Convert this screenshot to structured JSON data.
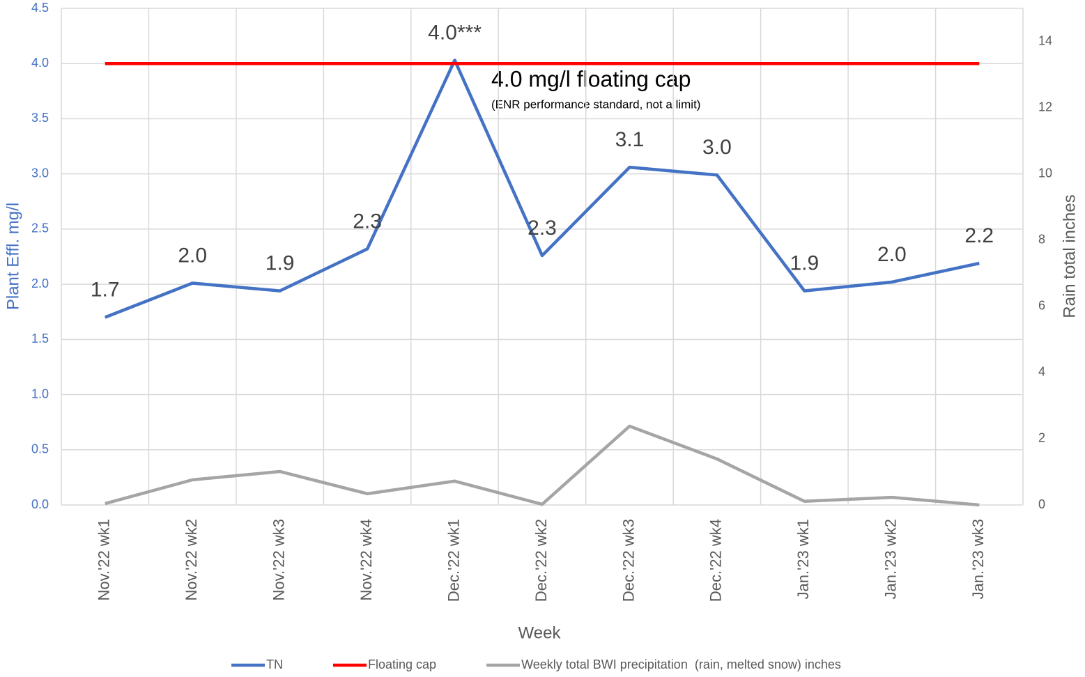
{
  "chart_data": {
    "type": "line",
    "x_label": "Week",
    "y_label": "Plant Effl. mg/l",
    "y2_label": "Rain total inches",
    "annotations": [
      "4.0 mg/l floating cap",
      "(ENR performance standard, not a limit)"
    ],
    "categories": [
      "Nov.'22 wk1",
      "Nov.'22 wk2",
      "Nov.'22 wk3",
      "Nov.'22 wk4",
      "Dec.'22 wk1",
      "Dec.'22 wk2",
      "Dec.'22 wk3",
      "Dec.'22 wk4",
      "Jan.'23 wk1",
      "Jan.'23 wk2",
      "Jan.'23 wk3"
    ],
    "series": [
      {
        "name": "TN",
        "color": "#4472c4",
        "values": [
          1.7,
          2.01,
          1.94,
          2.32,
          4.03,
          2.26,
          3.06,
          2.99,
          1.94,
          2.02,
          2.19
        ],
        "value_labels": [
          "1.7",
          "2.0",
          "1.9",
          "2.3",
          "4.0***",
          "2.3",
          "3.1",
          "3.0",
          "1.9",
          "2.0",
          "2.2"
        ]
      },
      {
        "name": "Floating cap",
        "color": "#ff0000",
        "values": [
          4.0,
          4.0,
          4.0,
          4.0,
          4.0,
          4.0,
          4.0,
          4.0,
          4.0,
          4.0,
          4.0
        ]
      },
      {
        "name": "Weekly total BWI precipitation  (rain, melted snow) inches",
        "color": "#a5a5a5",
        "axis": "y2",
        "values": [
          0.04,
          0.76,
          1.01,
          0.34,
          0.72,
          0.02,
          2.38,
          1.39,
          0.11,
          0.23,
          0
        ]
      }
    ],
    "ylim": [
      0,
      4.5
    ],
    "yticks": [
      {
        "value": 0,
        "label": "0.0"
      },
      {
        "value": 0.5,
        "label": "0.5"
      },
      {
        "value": 1,
        "label": "1.0"
      },
      {
        "value": 1.5,
        "label": "1.5"
      },
      {
        "value": 2,
        "label": "2.0"
      },
      {
        "value": 2.5,
        "label": "2.5"
      },
      {
        "value": 3,
        "label": "3.0"
      },
      {
        "value": 3.5,
        "label": "3.5"
      },
      {
        "value": 4,
        "label": "4.0"
      },
      {
        "value": 4.5,
        "label": "4.5"
      }
    ],
    "y2lim": [
      0,
      15
    ],
    "y2ticks": [
      0,
      2,
      4,
      6,
      8,
      10,
      12,
      14
    ],
    "grid": true,
    "legend": "bottom"
  }
}
